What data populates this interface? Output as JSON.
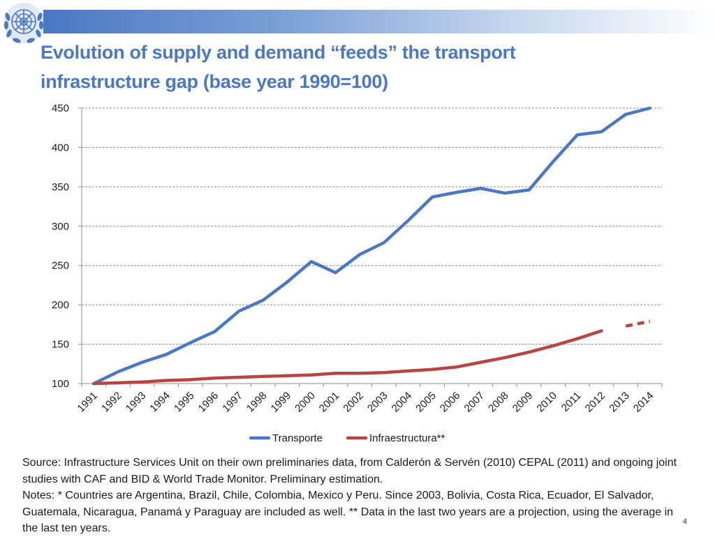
{
  "title_line1": "Evolution of supply and demand  “feeds” the transport",
  "title_line2": "infrastructure gap (base year 1990=100)",
  "source_text": "Source: Infrastructure Services Unit on their own preliminaries data, from  Calderón & Servén (2010) CEPAL (2011) and ongoing joint studies with CAF and BID & World Trade Monitor. Preliminary estimation.",
  "notes_text": "Notes: * Countries are Argentina, Brazil, Chile, Colombia, Mexico y Peru. Since 2003, Bolivia, Costa Rica, Ecuador, El Salvador, Guatemala, Nicaragua, Panamá y Paraguay are included as well.  ** Data in the last two years are a projection, using the average in the last ten years.",
  "page_number": "4",
  "colors": {
    "title": "#4a78c2",
    "transporte": "#4a78c2",
    "infraestructura": "#b84542",
    "grid": "#8c8c8c"
  },
  "chart_data": {
    "type": "line",
    "title": "",
    "xlabel": "",
    "ylabel": "",
    "categories": [
      "1991",
      "1992",
      "1993",
      "1994",
      "1995",
      "1996",
      "1997",
      "1998",
      "1999",
      "2000",
      "2001",
      "2002",
      "2003",
      "2004",
      "2005",
      "2006",
      "2007",
      "2008",
      "2009",
      "2010",
      "2011",
      "2012",
      "2013",
      "2014"
    ],
    "ylim": [
      100,
      450
    ],
    "yticks": [
      100,
      150,
      200,
      250,
      300,
      350,
      400,
      450
    ],
    "grid": true,
    "legend_position": "bottom",
    "series": [
      {
        "name": "Transporte",
        "style": "solid",
        "values": [
          100,
          115,
          127,
          137,
          152,
          166,
          192,
          206,
          229,
          255,
          241,
          264,
          279,
          307,
          337,
          343,
          348,
          342,
          346,
          382,
          416,
          420,
          442,
          455
        ]
      },
      {
        "name": "Infraestructura**",
        "style": "solid",
        "values": [
          100,
          101,
          102,
          104,
          105,
          107,
          108,
          109,
          110,
          111,
          113,
          113,
          114,
          116,
          118,
          121,
          127,
          133,
          140,
          148,
          157,
          167,
          null,
          null
        ]
      },
      {
        "name": "Infraestructura** (projection)",
        "style": "dashed",
        "in_legend": false,
        "values": [
          null,
          null,
          null,
          null,
          null,
          null,
          null,
          null,
          null,
          null,
          null,
          null,
          null,
          null,
          null,
          null,
          null,
          null,
          null,
          null,
          null,
          null,
          173,
          179
        ]
      }
    ]
  }
}
